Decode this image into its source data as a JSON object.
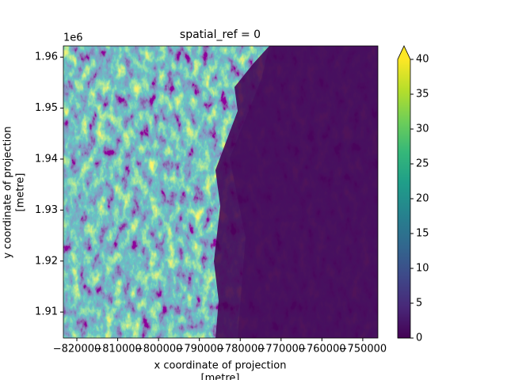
{
  "chart_data": {
    "type": "raster",
    "title": "spatial_ref = 0",
    "xlabel": [
      "x coordinate of projection",
      "[metre]"
    ],
    "ylabel": [
      "y coordinate of projection",
      "[metre]"
    ],
    "y_offset_text": "1e6",
    "xlim": [
      -823300,
      -746300
    ],
    "xticks": [
      {
        "value": -820000,
        "label": "−820000"
      },
      {
        "value": -810000,
        "label": "−810000"
      },
      {
        "value": -800000,
        "label": "−800000"
      },
      {
        "value": -790000,
        "label": "−790000"
      },
      {
        "value": -780000,
        "label": "−780000"
      },
      {
        "value": -770000,
        "label": "−770000"
      },
      {
        "value": -760000,
        "label": "−760000"
      },
      {
        "value": -750000,
        "label": "−750000"
      }
    ],
    "ylim": [
      1.9049,
      1.9622
    ],
    "yticks": [
      1.91,
      1.92,
      1.93,
      1.94,
      1.95,
      1.96
    ],
    "colormap": "viridis",
    "colorbar": {
      "lim": [
        0,
        40
      ],
      "ticks": [
        0,
        5,
        10,
        15,
        20,
        25,
        30,
        35,
        40
      ],
      "extend": "max"
    }
  }
}
